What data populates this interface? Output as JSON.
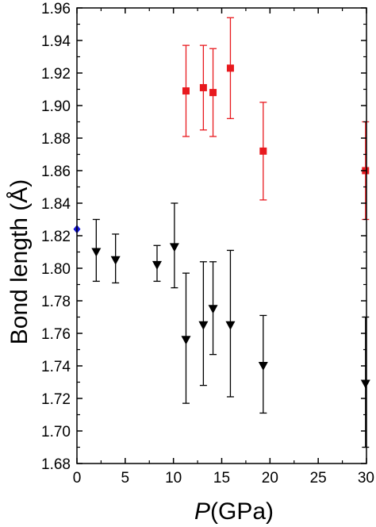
{
  "chart_data": {
    "type": "scatter",
    "xlabel_italic": "P",
    "xlabel_rest": "(GPa)",
    "ylabel": "Bond length (Å)",
    "xlim": [
      0,
      30
    ],
    "ylim": [
      1.68,
      1.96
    ],
    "xticks": [
      0,
      5,
      10,
      15,
      20,
      25,
      30
    ],
    "xtick_labels": [
      "0",
      "5",
      "10",
      "15",
      "20",
      "25",
      "30"
    ],
    "yticks": [
      1.68,
      1.7,
      1.72,
      1.74,
      1.76,
      1.78,
      1.8,
      1.82,
      1.84,
      1.86,
      1.88,
      1.9,
      1.92,
      1.94,
      1.96
    ],
    "ytick_labels": [
      "1.68",
      "1.70",
      "1.72",
      "1.74",
      "1.76",
      "1.78",
      "1.80",
      "1.82",
      "1.84",
      "1.86",
      "1.88",
      "1.90",
      "1.92",
      "1.94",
      "1.96"
    ],
    "grid": false,
    "series": [
      {
        "marker": "square",
        "color": "#e8191e",
        "points": [
          {
            "x": 11.3,
            "y": 1.909,
            "ylow": 1.881,
            "yhigh": 1.937
          },
          {
            "x": 13.1,
            "y": 1.911,
            "ylow": 1.885,
            "yhigh": 1.937
          },
          {
            "x": 14.1,
            "y": 1.908,
            "ylow": 1.881,
            "yhigh": 1.935
          },
          {
            "x": 15.9,
            "y": 1.923,
            "ylow": 1.892,
            "yhigh": 1.954
          },
          {
            "x": 19.3,
            "y": 1.872,
            "ylow": 1.842,
            "yhigh": 1.902
          },
          {
            "x": 29.9,
            "y": 1.86,
            "ylow": 1.83,
            "yhigh": 1.89
          }
        ]
      },
      {
        "marker": "triangle-down",
        "color": "#000000",
        "points": [
          {
            "x": 2.0,
            "y": 1.81,
            "ylow": 1.792,
            "yhigh": 1.83
          },
          {
            "x": 4.0,
            "y": 1.805,
            "ylow": 1.791,
            "yhigh": 1.821
          },
          {
            "x": 8.3,
            "y": 1.802,
            "ylow": 1.792,
            "yhigh": 1.814
          },
          {
            "x": 10.1,
            "y": 1.813,
            "ylow": 1.788,
            "yhigh": 1.84
          },
          {
            "x": 11.3,
            "y": 1.756,
            "ylow": 1.717,
            "yhigh": 1.797
          },
          {
            "x": 13.1,
            "y": 1.765,
            "ylow": 1.728,
            "yhigh": 1.804
          },
          {
            "x": 14.1,
            "y": 1.775,
            "ylow": 1.747,
            "yhigh": 1.804
          },
          {
            "x": 15.9,
            "y": 1.765,
            "ylow": 1.721,
            "yhigh": 1.811
          },
          {
            "x": 19.3,
            "y": 1.74,
            "ylow": 1.711,
            "yhigh": 1.771
          },
          {
            "x": 29.9,
            "y": 1.729,
            "ylow": 1.69,
            "yhigh": 1.77
          }
        ]
      },
      {
        "marker": "diamond",
        "color": "#1414d8",
        "points": [
          {
            "x": 0.0,
            "y": 1.824
          }
        ]
      }
    ]
  }
}
